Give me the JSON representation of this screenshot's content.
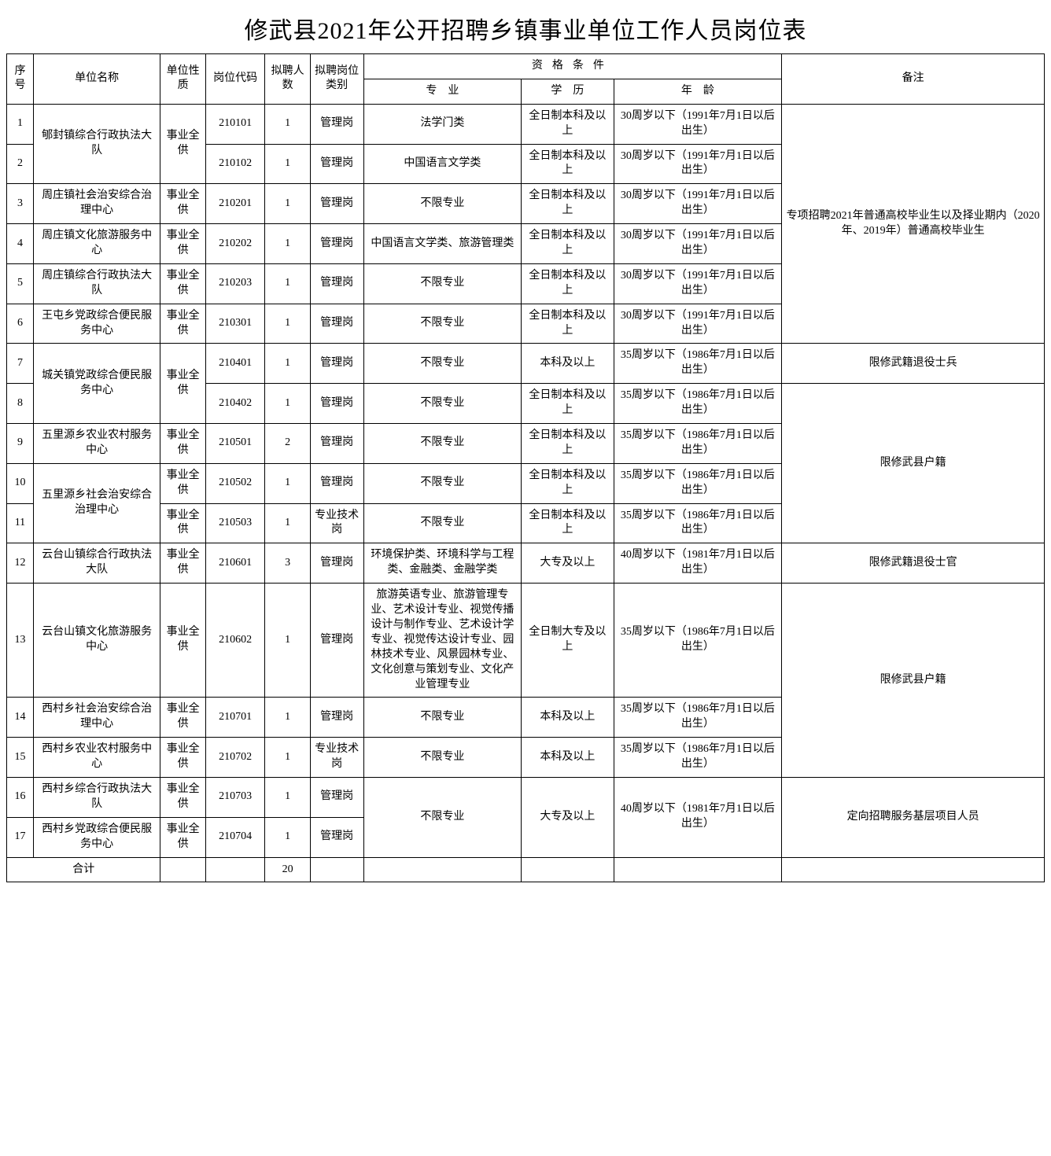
{
  "title": "修武县2021年公开招聘乡镇事业单位工作人员岗位表",
  "columns": {
    "seq": "序号",
    "unit": "单位名称",
    "nature": "单位性质",
    "code": "岗位代码",
    "count": "拟聘人数",
    "category": "拟聘岗位类别",
    "qual": "资格条件",
    "major": "专　业",
    "edu": "学　历",
    "age": "年　龄",
    "note": "备注"
  },
  "note_group_a": "专项招聘2021年普通高校毕业生以及择业期内（2020年、2019年）普通高校毕业生",
  "note_row7": "限修武籍退役士兵",
  "note_group_b": "限修武县户籍",
  "note_row12": "限修武籍退役士官",
  "note_group_c": "限修武县户籍",
  "note_group_d": "定向招聘服务基层项目人员",
  "total_label": "合计",
  "total_count": "20",
  "rows": [
    {
      "seq": "1",
      "unit": "郇封镇综合行政执法大队",
      "nature": "事业全供",
      "code": "210101",
      "count": "1",
      "cat": "管理岗",
      "major": "法学门类",
      "edu": "全日制本科及以上",
      "age": "30周岁以下（1991年7月1日以后出生）"
    },
    {
      "seq": "2",
      "unit": "",
      "nature": "",
      "code": "210102",
      "count": "1",
      "cat": "管理岗",
      "major": "中国语言文学类",
      "edu": "全日制本科及以上",
      "age": "30周岁以下（1991年7月1日以后出生）"
    },
    {
      "seq": "3",
      "unit": "周庄镇社会治安综合治理中心",
      "nature": "事业全供",
      "code": "210201",
      "count": "1",
      "cat": "管理岗",
      "major": "不限专业",
      "edu": "全日制本科及以上",
      "age": "30周岁以下（1991年7月1日以后出生）"
    },
    {
      "seq": "4",
      "unit": "周庄镇文化旅游服务中心",
      "nature": "事业全供",
      "code": "210202",
      "count": "1",
      "cat": "管理岗",
      "major": "中国语言文学类、旅游管理类",
      "edu": "全日制本科及以上",
      "age": "30周岁以下（1991年7月1日以后出生）"
    },
    {
      "seq": "5",
      "unit": "周庄镇综合行政执法大队",
      "nature": "事业全供",
      "code": "210203",
      "count": "1",
      "cat": "管理岗",
      "major": "不限专业",
      "edu": "全日制本科及以上",
      "age": "30周岁以下（1991年7月1日以后出生）"
    },
    {
      "seq": "6",
      "unit": "王屯乡党政综合便民服务中心",
      "nature": "事业全供",
      "code": "210301",
      "count": "1",
      "cat": "管理岗",
      "major": "不限专业",
      "edu": "全日制本科及以上",
      "age": "30周岁以下（1991年7月1日以后出生）"
    },
    {
      "seq": "7",
      "unit": "城关镇党政综合便民服务中心",
      "nature": "事业全供",
      "code": "210401",
      "count": "1",
      "cat": "管理岗",
      "major": "不限专业",
      "edu": "本科及以上",
      "age": "35周岁以下（1986年7月1日以后出生）"
    },
    {
      "seq": "8",
      "unit": "",
      "nature": "",
      "code": "210402",
      "count": "1",
      "cat": "管理岗",
      "major": "不限专业",
      "edu": "全日制本科及以上",
      "age": "35周岁以下（1986年7月1日以后出生）"
    },
    {
      "seq": "9",
      "unit": "五里源乡农业农村服务中心",
      "nature": "事业全供",
      "code": "210501",
      "count": "2",
      "cat": "管理岗",
      "major": "不限专业",
      "edu": "全日制本科及以上",
      "age": "35周岁以下（1986年7月1日以后出生）"
    },
    {
      "seq": "10",
      "unit": "五里源乡社会治安综合治理中心",
      "nature": "事业全供",
      "code": "210502",
      "count": "1",
      "cat": "管理岗",
      "major": "不限专业",
      "edu": "全日制本科及以上",
      "age": "35周岁以下（1986年7月1日以后出生）"
    },
    {
      "seq": "11",
      "unit": "",
      "nature": "事业全供",
      "code": "210503",
      "count": "1",
      "cat": "专业技术岗",
      "major": "不限专业",
      "edu": "全日制本科及以上",
      "age": "35周岁以下（1986年7月1日以后出生）"
    },
    {
      "seq": "12",
      "unit": "云台山镇综合行政执法大队",
      "nature": "事业全供",
      "code": "210601",
      "count": "3",
      "cat": "管理岗",
      "major": "环境保护类、环境科学与工程类、金融类、金融学类",
      "edu": "大专及以上",
      "age": "40周岁以下（1981年7月1日以后出生）"
    },
    {
      "seq": "13",
      "unit": "云台山镇文化旅游服务中心",
      "nature": "事业全供",
      "code": "210602",
      "count": "1",
      "cat": "管理岗",
      "major": "旅游英语专业、旅游管理专业、艺术设计专业、视觉传播设计与制作专业、艺术设计学专业、视觉传达设计专业、园林技术专业、风景园林专业、文化创意与策划专业、文化产业管理专业",
      "edu": "全日制大专及以上",
      "age": "35周岁以下（1986年7月1日以后出生）"
    },
    {
      "seq": "14",
      "unit": "西村乡社会治安综合治理中心",
      "nature": "事业全供",
      "code": "210701",
      "count": "1",
      "cat": "管理岗",
      "major": "不限专业",
      "edu": "本科及以上",
      "age": "35周岁以下（1986年7月1日以后出生）"
    },
    {
      "seq": "15",
      "unit": "西村乡农业农村服务中心",
      "nature": "事业全供",
      "code": "210702",
      "count": "1",
      "cat": "专业技术岗",
      "major": "不限专业",
      "edu": "本科及以上",
      "age": "35周岁以下（1986年7月1日以后出生）"
    },
    {
      "seq": "16",
      "unit": "西村乡综合行政执法大队",
      "nature": "事业全供",
      "code": "210703",
      "count": "1",
      "cat": "管理岗",
      "major": "不限专业",
      "edu": "大专及以上",
      "age": "40周岁以下（1981年7月1日以后出生）"
    },
    {
      "seq": "17",
      "unit": "西村乡党政综合便民服务中心",
      "nature": "事业全供",
      "code": "210704",
      "count": "1",
      "cat": "管理岗",
      "major": "",
      "edu": "",
      "age": ""
    }
  ]
}
